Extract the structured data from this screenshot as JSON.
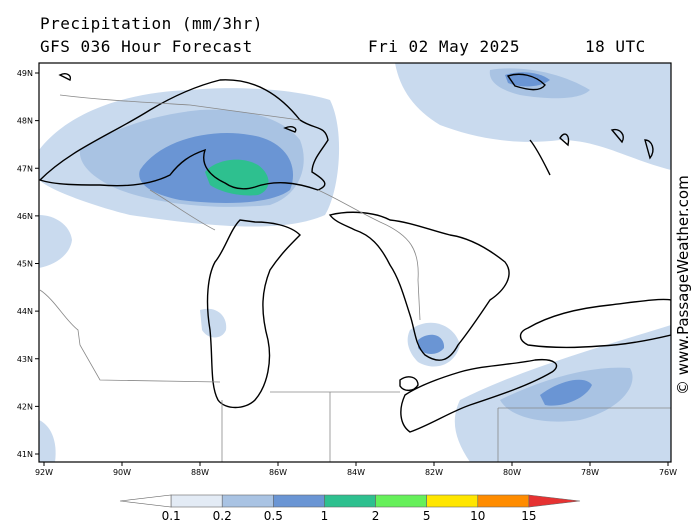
{
  "header": {
    "line1": "Precipitation (mm/3hr)",
    "line2_left": "GFS 036 Hour Forecast",
    "date": "Fri 02 May 2025",
    "time": "18 UTC"
  },
  "axes": {
    "lat_labels": [
      "49N",
      "48N",
      "47N",
      "46N",
      "45N",
      "44N",
      "43N",
      "42N",
      "41N"
    ],
    "lon_labels": [
      "92W",
      "90W",
      "88W",
      "86W",
      "84W",
      "82W",
      "80W",
      "78W",
      "76W"
    ]
  },
  "colorbar": {
    "labels": [
      "0.1",
      "0.2",
      "0.5",
      "1",
      "2",
      "5",
      "10",
      "15"
    ],
    "colors": [
      "#ffffff",
      "#e3ebf5",
      "#a9c3e3",
      "#6a95d4",
      "#2ec08f",
      "#66f05a",
      "#ffe600",
      "#ff8c00",
      "#e63232"
    ]
  },
  "credit": "© www.PassageWeather.com"
}
